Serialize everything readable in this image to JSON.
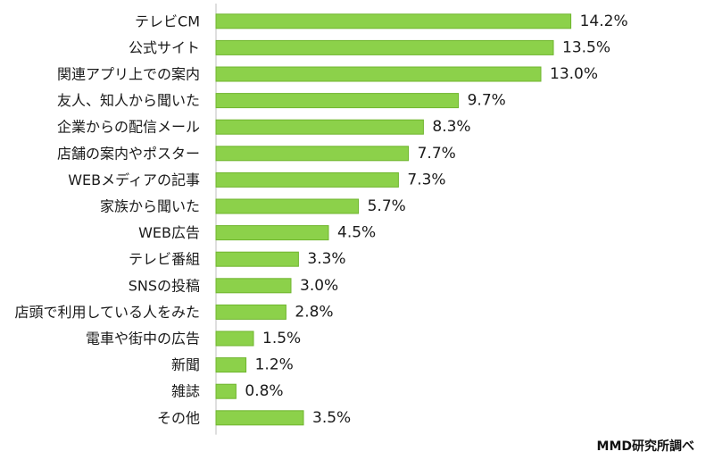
{
  "chart_data": {
    "type": "bar",
    "orientation": "horizontal",
    "categories": [
      "テレビCM",
      "公式サイト",
      "関連アプリ上での案内",
      "友人、知人から聞いた",
      "企業からの配信メール",
      "店舗の案内やポスター",
      "WEBメディアの記事",
      "家族から聞いた",
      "WEB広告",
      "テレビ番組",
      "SNSの投稿",
      "店頭で利用している人をみた",
      "電車や街中の広告",
      "新聞",
      "雑誌",
      "その他"
    ],
    "values": [
      14.2,
      13.5,
      13.0,
      9.7,
      8.3,
      7.7,
      7.3,
      5.7,
      4.5,
      3.3,
      3.0,
      2.8,
      1.5,
      1.2,
      0.8,
      3.5
    ],
    "value_labels": [
      "14.2%",
      "13.5%",
      "13.0%",
      "9.7%",
      "8.3%",
      "7.7%",
      "7.3%",
      "5.7%",
      "4.5%",
      "3.3%",
      "3.0%",
      "2.8%",
      "1.5%",
      "1.2%",
      "0.8%",
      "3.5%"
    ],
    "bar_color": "#8cd14a",
    "xlim": [
      0,
      16
    ],
    "grid": false,
    "source": "MMD研究所調べ"
  }
}
